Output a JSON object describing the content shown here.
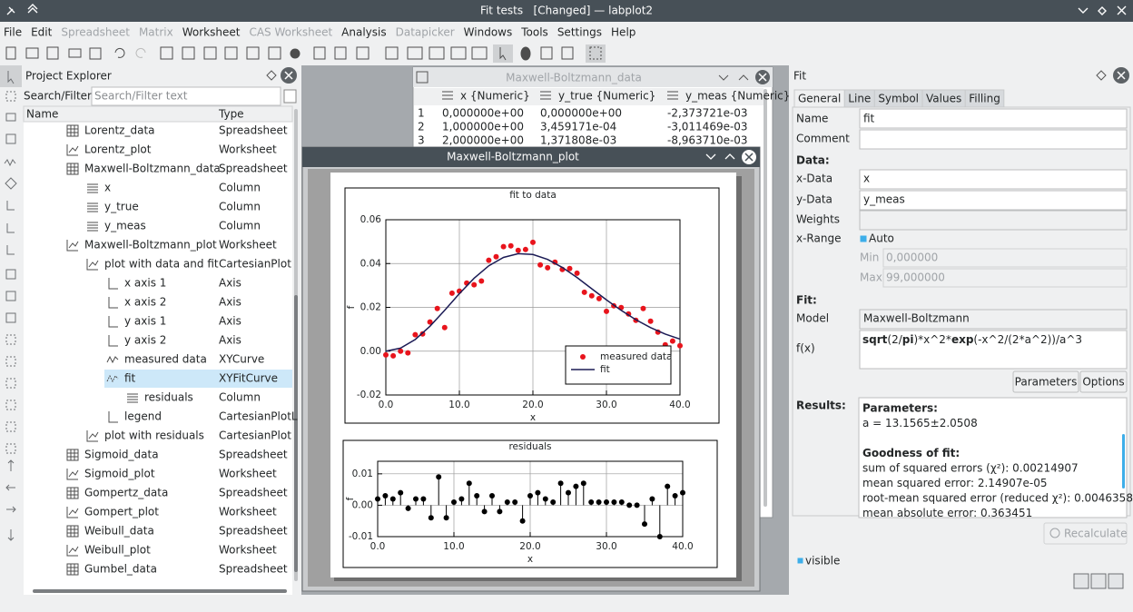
{
  "window": {
    "title": "Fit tests   [Changed] — labplot2"
  },
  "menu": [
    {
      "label": "File",
      "enabled": true
    },
    {
      "label": "Edit",
      "enabled": true
    },
    {
      "label": "Spreadsheet",
      "enabled": false
    },
    {
      "label": "Matrix",
      "enabled": false
    },
    {
      "label": "Worksheet",
      "enabled": true
    },
    {
      "label": "CAS Worksheet",
      "enabled": false
    },
    {
      "label": "Analysis",
      "enabled": true
    },
    {
      "label": "Datapicker",
      "enabled": false
    },
    {
      "label": "Windows",
      "enabled": true
    },
    {
      "label": "Tools",
      "enabled": true
    },
    {
      "label": "Settings",
      "enabled": true
    },
    {
      "label": "Help",
      "enabled": true
    }
  ],
  "explorer": {
    "title": "Project Explorer",
    "search_label": "Search/Filter:",
    "search_placeholder": "Search/Filter text",
    "columns": [
      "Name",
      "Type"
    ],
    "selected_row": 13,
    "rows": [
      {
        "name": "Lorentz_data",
        "type": "Spreadsheet",
        "level": 1
      },
      {
        "name": "Lorentz_plot",
        "type": "Worksheet",
        "level": 1
      },
      {
        "name": "Maxwell-Boltzmann_data",
        "type": "Spreadsheet",
        "level": 1
      },
      {
        "name": "x",
        "type": "Column",
        "level": 2
      },
      {
        "name": "y_true",
        "type": "Column",
        "level": 2
      },
      {
        "name": "y_meas",
        "type": "Column",
        "level": 2
      },
      {
        "name": "Maxwell-Boltzmann_plot",
        "type": "Worksheet",
        "level": 1
      },
      {
        "name": "plot with data and fit",
        "type": "CartesianPlot",
        "level": 2
      },
      {
        "name": "x axis 1",
        "type": "Axis",
        "level": 3
      },
      {
        "name": "x axis 2",
        "type": "Axis",
        "level": 3
      },
      {
        "name": "y axis 1",
        "type": "Axis",
        "level": 3
      },
      {
        "name": "y axis 2",
        "type": "Axis",
        "level": 3
      },
      {
        "name": "measured data",
        "type": "XYCurve",
        "level": 3
      },
      {
        "name": "fit",
        "type": "XYFitCurve",
        "level": 3
      },
      {
        "name": "residuals",
        "type": "Column",
        "level": 4
      },
      {
        "name": "legend",
        "type": "CartesianPlotL",
        "level": 3
      },
      {
        "name": "plot with residuals",
        "type": "CartesianPlot",
        "level": 2
      },
      {
        "name": "Sigmoid_data",
        "type": "Spreadsheet",
        "level": 1
      },
      {
        "name": "Sigmoid_plot",
        "type": "Worksheet",
        "level": 1
      },
      {
        "name": "Gompertz_data",
        "type": "Spreadsheet",
        "level": 1
      },
      {
        "name": "Gompert_plot",
        "type": "Worksheet",
        "level": 1
      },
      {
        "name": "Weibull_data",
        "type": "Spreadsheet",
        "level": 1
      },
      {
        "name": "Weibull_plot",
        "type": "Worksheet",
        "level": 1
      },
      {
        "name": "Gumbel_data",
        "type": "Spreadsheet",
        "level": 1
      }
    ]
  },
  "spreadsheet": {
    "title": "Maxwell-Boltzmann_data",
    "columns": [
      "x {Numeric}",
      "y_true {Numeric}",
      "y_meas {Numeric}"
    ],
    "rows": [
      [
        "1",
        "0,000000e+00",
        "0,000000e+00",
        "-2,373721e-03"
      ],
      [
        "2",
        "1,000000e+00",
        "3,459171e-04",
        "-3,011469e-03"
      ],
      [
        "3",
        "2,000000e+00",
        "1,371808e-03",
        "-8,963710e-03"
      ]
    ]
  },
  "worksheet": {
    "title": "Maxwell-Boltzmann_plot",
    "plots": [
      {
        "title": "fit to data",
        "x_label": "x",
        "y_label": "f",
        "grid": true,
        "legend": "bottom-right",
        "xlim": [
          0,
          40
        ],
        "ylim": [
          -0.02,
          0.06
        ],
        "xticks": [
          {
            "value": 0,
            "label": "0.0"
          },
          {
            "value": 10,
            "label": "10.0"
          },
          {
            "value": 20,
            "label": "20.0"
          },
          {
            "value": 30,
            "label": "30.0"
          },
          {
            "value": 40,
            "label": "40.0"
          }
        ],
        "yticks": [
          -0.02,
          {
            "value": 0,
            "label": "0.00"
          },
          0.02,
          0.04,
          0.06
        ],
        "series": [
          {
            "name": "measured data",
            "style": "markers",
            "color": "#e8141c",
            "x": [
              0,
              1,
              2,
              3,
              4,
              5,
              6,
              7,
              8,
              9,
              10,
              11,
              12,
              13,
              14,
              15,
              16,
              17,
              18,
              19,
              20,
              21,
              22,
              23,
              24,
              25,
              26,
              27,
              28,
              29,
              30,
              31,
              32,
              33,
              34,
              35,
              36,
              37,
              38,
              39,
              40
            ],
            "values": [
              -0.0017,
              -0.0021,
              0,
              -0.0008,
              0.0075,
              0.0079,
              0.0133,
              0.0195,
              0.0108,
              0.0265,
              0.0274,
              0.0311,
              0.0303,
              0.032,
              0.0415,
              0.0431,
              0.0477,
              0.0481,
              0.046,
              0.0464,
              0.0497,
              0.0394,
              0.0381,
              0.0406,
              0.0373,
              0.0377,
              0.0356,
              0.0269,
              0.0253,
              0.024,
              0.0182,
              0.0207,
              0.0199,
              0.017,
              0.0141,
              0.0195,
              0.0137,
              0.0087,
              0.0029,
              0.0046,
              0.0025
            ]
          },
          {
            "name": "fit",
            "style": "line",
            "color": "#1b1b55",
            "x": [
              0,
              2,
              4,
              6,
              8,
              10,
              12,
              14,
              16,
              18,
              20,
              22,
              24,
              26,
              28,
              30,
              32,
              34,
              36,
              38,
              40
            ],
            "values": [
              0,
              0.00139,
              0.00535,
              0.01137,
              0.01864,
              0.02625,
              0.03328,
              0.03898,
              0.04281,
              0.04452,
              0.04413,
              0.0419,
              0.03822,
              0.03361,
              0.02851,
              0.02343,
              0.01863,
              0.01436,
              0.01075,
              0.00781,
              0.00551
            ]
          }
        ]
      },
      {
        "title": "residuals",
        "x_label": "x",
        "y_label": "f",
        "grid": true,
        "xlim": [
          0,
          40
        ],
        "ylim": [
          -0.01,
          0.014
        ],
        "xticks": [
          {
            "value": 0,
            "label": "0.0"
          },
          {
            "value": 10,
            "label": "10.0"
          },
          {
            "value": 20,
            "label": "20.0"
          },
          {
            "value": 30,
            "label": "30.0"
          },
          {
            "value": 40,
            "label": "40.0"
          }
        ],
        "yticks": [
          -0.01,
          {
            "value": 0,
            "label": "0.00"
          },
          0.01
        ],
        "series": [
          {
            "style": "stems",
            "color": "#000000",
            "x": [
              0,
              1,
              2,
              3,
              4,
              5,
              6,
              7,
              8,
              9,
              10,
              11,
              12,
              13,
              14,
              15,
              16,
              17,
              18,
              19,
              20,
              21,
              22,
              23,
              24,
              25,
              26,
              27,
              28,
              29,
              30,
              31,
              32,
              33,
              34,
              35,
              36,
              37,
              38,
              39,
              40
            ],
            "values": [
              0.002,
              0.003,
              0.002,
              0.004,
              -0.001,
              0.002,
              0.002,
              -0.004,
              0.009,
              -0.004,
              0.001,
              0.002,
              0.007,
              0.003,
              -0.002,
              0.003,
              -0.002,
              0.001,
              0.001,
              -0.005,
              0.003,
              0.004,
              0.002,
              0.001,
              0.007,
              0.004,
              0.006,
              0.007,
              0.001,
              0.001,
              0.001,
              0.001,
              0.001,
              0,
              0,
              -0.006,
              0.002,
              -0.01,
              0.006,
              0.003,
              0.004
            ]
          }
        ]
      }
    ]
  },
  "fit_panel": {
    "title": "Fit",
    "tabs": [
      "General",
      "Line",
      "Symbol",
      "Values",
      "Filling"
    ],
    "active_tab": 0,
    "name_label": "Name",
    "name": "fit",
    "comment_label": "Comment",
    "data_heading": "Data:",
    "x_data_label": "x-Data",
    "x_data": "x",
    "y_data_label": "y-Data",
    "y_data": "y_meas",
    "weights_label": "Weights",
    "x_range_label": "x-Range",
    "x_range_auto_label": "Auto",
    "x_range_auto": true,
    "min_label": "Min",
    "min": "0,000000",
    "max_label": "Max",
    "max": "99,000000",
    "fit_heading": "Fit:",
    "model_label": "Model",
    "model": "Maxwell-Boltzmann",
    "fx_label": "f(x)",
    "formula": [
      {
        "text": "sqrt",
        "bold": true
      },
      {
        "text": "(2/",
        "bold": false
      },
      {
        "text": "pi",
        "bold": true
      },
      {
        "text": ")*x^2*",
        "bold": false
      },
      {
        "text": "exp",
        "bold": true
      },
      {
        "text": "(-x^2/(2*a^2))/a^3",
        "bold": false
      }
    ],
    "buttons": [
      "Parameters",
      "Options"
    ],
    "results_label": "Results:",
    "results": [
      {
        "heading": "Parameters:",
        "lines": [
          "a = 13.1565±2.0508"
        ]
      },
      {
        "heading": "Goodness of fit:",
        "lines": [
          "sum of squared errors (χ²): 0.00214907",
          "mean squared error: 2.14907e-05",
          "root-mean squared error (reduced χ²): 0.0046358",
          "mean absolute error: 0.363451"
        ]
      }
    ],
    "recalculate": "Recalculate",
    "visible_label": "visible",
    "visible": true
  }
}
